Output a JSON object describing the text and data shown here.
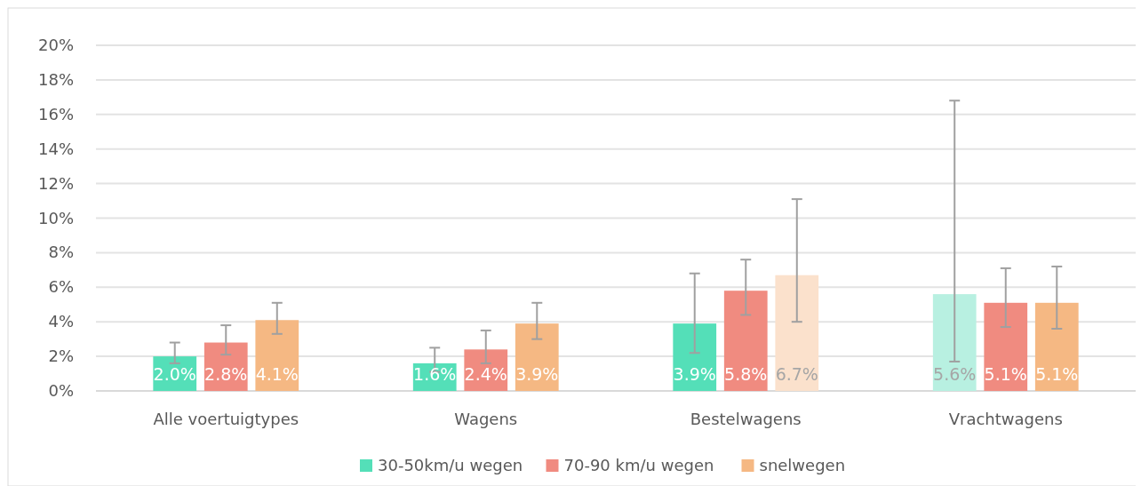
{
  "chart_data": {
    "type": "bar",
    "categories": [
      "Alle voertuigtypes",
      "Wagens",
      "Bestelwagens",
      "Vrachtwagens"
    ],
    "series": [
      {
        "name": "30-50km/u wegen",
        "color": "#54dfb8",
        "colors": [
          "#54dfb8",
          "#54dfb8",
          "#54dfb8",
          "#b8f0e1"
        ],
        "values": [
          2.0,
          1.6,
          3.9,
          5.6
        ],
        "value_labels": [
          "2.0%",
          "1.6%",
          "3.9%",
          "5.6%"
        ],
        "errors": [
          [
            1.6,
            2.8
          ],
          [
            1.1,
            2.5
          ],
          [
            2.2,
            6.8
          ],
          [
            1.7,
            16.8
          ]
        ]
      },
      {
        "name": "70-90 km/u wegen",
        "color": "#f08b80",
        "values": [
          2.8,
          2.4,
          5.8,
          5.1
        ],
        "value_labels": [
          "2.8%",
          "2.4%",
          "5.8%",
          "5.1%"
        ],
        "errors": [
          [
            2.1,
            3.8
          ],
          [
            1.6,
            3.5
          ],
          [
            4.4,
            7.6
          ],
          [
            3.7,
            7.1
          ]
        ]
      },
      {
        "name": "snelwegen",
        "color": "#f5b883",
        "colors": [
          "#f5b883",
          "#f5b883",
          "#fbe1cc",
          "#f5b883"
        ],
        "values": [
          4.1,
          3.9,
          6.7,
          5.1
        ],
        "value_labels": [
          "4.1%",
          "3.9%",
          "6.7%",
          "5.1%"
        ],
        "errors": [
          [
            3.3,
            5.1
          ],
          [
            3.0,
            5.1
          ],
          [
            4.0,
            11.1
          ],
          [
            3.6,
            7.2
          ]
        ]
      }
    ],
    "ylim": [
      0,
      20
    ],
    "yticks": [
      {
        "value": 0,
        "label": "0%"
      },
      {
        "value": 2,
        "label": "2%"
      },
      {
        "value": 4,
        "label": "4%"
      },
      {
        "value": 6,
        "label": "6%"
      },
      {
        "value": 8,
        "label": "8%"
      },
      {
        "value": 10,
        "label": "10%"
      },
      {
        "value": 12,
        "label": "12%"
      },
      {
        "value": 14,
        "label": "14%"
      },
      {
        "value": 16,
        "label": "16%"
      },
      {
        "value": 18,
        "label": "18%"
      },
      {
        "value": 20,
        "label": "20%"
      }
    ],
    "grid": "y",
    "legend": "bottom"
  }
}
